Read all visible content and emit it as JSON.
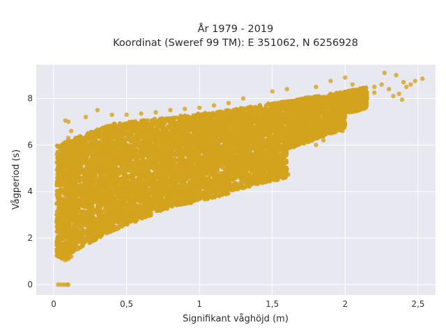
{
  "chart_data": {
    "type": "scatter",
    "title_line1": "År 1979 - 2019",
    "title_line2": "Koordinat (Sweref 99 TM): E 351062, N 6256928",
    "xlabel": "Signifikant våghöjd (m)",
    "ylabel": "Vågperiod (s)",
    "xlim": [
      -0.12,
      2.62
    ],
    "ylim": [
      -0.45,
      9.45
    ],
    "x_ticks": [
      {
        "value": 0,
        "label": "0"
      },
      {
        "value": 0.5,
        "label": "0,5"
      },
      {
        "value": 1,
        "label": "1"
      },
      {
        "value": 1.5,
        "label": "1,5"
      },
      {
        "value": 2,
        "label": "2"
      },
      {
        "value": 2.5,
        "label": "2,5"
      }
    ],
    "y_ticks": [
      {
        "value": 0,
        "label": "0"
      },
      {
        "value": 2,
        "label": "2"
      },
      {
        "value": 4,
        "label": "4"
      },
      {
        "value": 6,
        "label": "6"
      },
      {
        "value": 8,
        "label": "8"
      }
    ],
    "grid": true,
    "colors": {
      "marker": "#d4a31f",
      "plot_background": "#e8e8f0",
      "grid": "#ffffff"
    },
    "points": [
      [
        0.03,
        0.0
      ],
      [
        0.05,
        0.0
      ],
      [
        0.07,
        0.0
      ],
      [
        0.09,
        0.0
      ],
      [
        0.1,
        0.0
      ],
      [
        0.02,
        1.25
      ],
      [
        0.03,
        1.2
      ],
      [
        0.05,
        1.15
      ],
      [
        0.06,
        1.1
      ],
      [
        0.08,
        1.05
      ],
      [
        0.1,
        1.1
      ],
      [
        0.12,
        1.2
      ],
      [
        0.05,
        2.5
      ],
      [
        0.06,
        3.0
      ],
      [
        0.05,
        3.5
      ],
      [
        0.07,
        4.0
      ],
      [
        0.06,
        4.5
      ],
      [
        0.07,
        5.0
      ],
      [
        0.08,
        5.5
      ],
      [
        0.09,
        6.0
      ],
      [
        0.1,
        6.3
      ],
      [
        0.1,
        7.0
      ],
      [
        0.08,
        7.05
      ],
      [
        0.12,
        6.6
      ],
      [
        0.15,
        1.5
      ],
      [
        0.2,
        1.8
      ],
      [
        0.25,
        2.0
      ],
      [
        0.3,
        2.3
      ],
      [
        0.35,
        2.5
      ],
      [
        0.4,
        2.7
      ],
      [
        0.5,
        3.0
      ],
      [
        0.6,
        3.2
      ],
      [
        0.7,
        3.4
      ],
      [
        0.8,
        3.6
      ],
      [
        0.9,
        3.8
      ],
      [
        1.0,
        4.0
      ],
      [
        1.1,
        4.2
      ],
      [
        1.2,
        4.3
      ],
      [
        1.3,
        4.4
      ],
      [
        1.4,
        4.6
      ],
      [
        1.5,
        4.6
      ],
      [
        1.57,
        4.75
      ],
      [
        1.61,
        4.73
      ],
      [
        0.15,
        4.0
      ],
      [
        0.2,
        4.5
      ],
      [
        0.25,
        5.0
      ],
      [
        0.3,
        5.5
      ],
      [
        0.35,
        6.0
      ],
      [
        0.3,
        7.5
      ],
      [
        0.22,
        7.2
      ],
      [
        0.4,
        7.3
      ],
      [
        0.5,
        7.3
      ],
      [
        0.6,
        7.35
      ],
      [
        0.7,
        7.4
      ],
      [
        0.8,
        7.5
      ],
      [
        0.9,
        7.55
      ],
      [
        1.0,
        7.6
      ],
      [
        1.1,
        7.7
      ],
      [
        1.2,
        7.8
      ],
      [
        1.3,
        8.0
      ],
      [
        1.5,
        8.3
      ],
      [
        1.6,
        8.4
      ],
      [
        1.8,
        8.5
      ],
      [
        1.9,
        8.75
      ],
      [
        2.0,
        8.9
      ],
      [
        2.05,
        8.6
      ],
      [
        0.2,
        3.0
      ],
      [
        0.3,
        3.5
      ],
      [
        0.4,
        4.0
      ],
      [
        0.5,
        4.5
      ],
      [
        0.6,
        5.0
      ],
      [
        0.7,
        5.5
      ],
      [
        0.8,
        6.0
      ],
      [
        0.9,
        6.3
      ],
      [
        1.0,
        6.5
      ],
      [
        1.2,
        6.8
      ],
      [
        1.4,
        7.0
      ],
      [
        1.6,
        7.2
      ],
      [
        1.8,
        7.5
      ],
      [
        2.0,
        7.8
      ],
      [
        1.7,
        7.0
      ],
      [
        1.8,
        7.2
      ],
      [
        1.75,
        6.8
      ],
      [
        1.9,
        7.4
      ],
      [
        1.95,
        7.0
      ],
      [
        2.0,
        6.9
      ],
      [
        1.98,
        6.6
      ],
      [
        2.1,
        7.5
      ],
      [
        2.05,
        8.3
      ],
      [
        2.08,
        8.15
      ],
      [
        2.15,
        8.0
      ],
      [
        2.2,
        8.5
      ],
      [
        2.25,
        8.6
      ],
      [
        2.3,
        8.4
      ],
      [
        2.33,
        8.1
      ],
      [
        2.35,
        9.0
      ],
      [
        2.37,
        8.2
      ],
      [
        2.4,
        8.7
      ],
      [
        2.42,
        8.5
      ],
      [
        2.45,
        8.6
      ],
      [
        2.48,
        8.75
      ],
      [
        2.53,
        8.85
      ],
      [
        2.27,
        9.1
      ],
      [
        2.2,
        8.25
      ],
      [
        2.39,
        7.95
      ],
      [
        1.8,
        6.0
      ],
      [
        1.9,
        6.5
      ],
      [
        1.85,
        6.2
      ],
      [
        1.55,
        6.3
      ],
      [
        1.65,
        6.7
      ],
      [
        1.45,
        6.1
      ],
      [
        1.3,
        5.8
      ],
      [
        1.2,
        5.6
      ],
      [
        1.1,
        5.3
      ],
      [
        0.95,
        5.1
      ],
      [
        0.85,
        4.9
      ]
    ],
    "bands": [
      {
        "x0": 0.02,
        "x1": 0.11,
        "y_lo": [
          1.2,
          1.1
        ],
        "y_hi": [
          6.0,
          6.2
        ],
        "density": 6
      },
      {
        "x0": 0.1,
        "x1": 0.4,
        "y_lo": [
          1.3,
          2.3
        ],
        "y_hi": [
          6.2,
          6.9
        ],
        "density": 6
      },
      {
        "x0": 0.4,
        "x1": 0.8,
        "y_lo": [
          2.3,
          3.3
        ],
        "y_hi": [
          6.9,
          7.2
        ],
        "density": 5
      },
      {
        "x0": 0.8,
        "x1": 1.2,
        "y_lo": [
          3.3,
          3.9
        ],
        "y_hi": [
          7.2,
          7.5
        ],
        "density": 5
      },
      {
        "x0": 1.2,
        "x1": 1.6,
        "y_lo": [
          4.0,
          4.6
        ],
        "y_hi": [
          7.5,
          7.9
        ],
        "density": 5
      },
      {
        "x0": 1.6,
        "x1": 2.0,
        "y_lo": [
          5.8,
          6.7
        ],
        "y_hi": [
          7.9,
          8.3
        ],
        "density": 4
      },
      {
        "x0": 2.0,
        "x1": 2.15,
        "y_lo": [
          7.3,
          7.6
        ],
        "y_hi": [
          8.3,
          8.5
        ],
        "density": 3
      }
    ]
  }
}
